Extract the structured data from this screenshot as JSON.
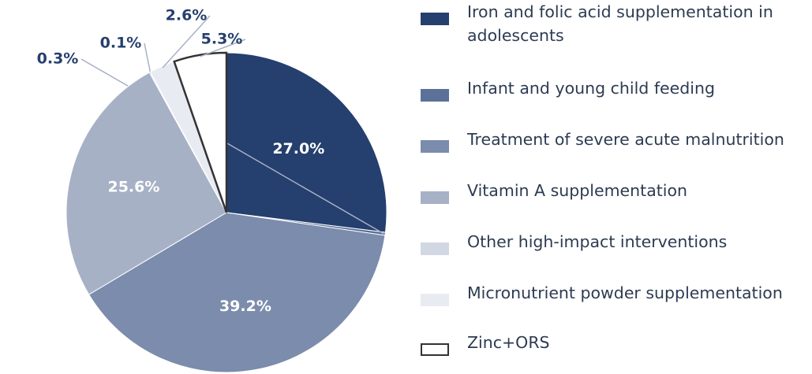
{
  "chart_data": {
    "type": "pie",
    "categories": [
      "Iron and folic acid supplementation in adolescents",
      "Infant and young child feeding",
      "Treatment of severe acute malnutrition",
      "Vitamin A supplementation",
      "Other high-impact interventions",
      "Micronutrient powder supplementation",
      "Zinc+ORS"
    ],
    "values": [
      27.0,
      0.3,
      39.2,
      25.6,
      0.1,
      2.6,
      5.3
    ],
    "value_labels": [
      "27.0%",
      "0.3%",
      "39.2%",
      "25.6%",
      "0.1%",
      "2.6%",
      "5.3%"
    ],
    "colors": [
      "#253f6e",
      "#5b7197",
      "#7b8cac",
      "#a7b1c6",
      "#d1d7e3",
      "#e8ebf1",
      "#ffffff"
    ]
  }
}
